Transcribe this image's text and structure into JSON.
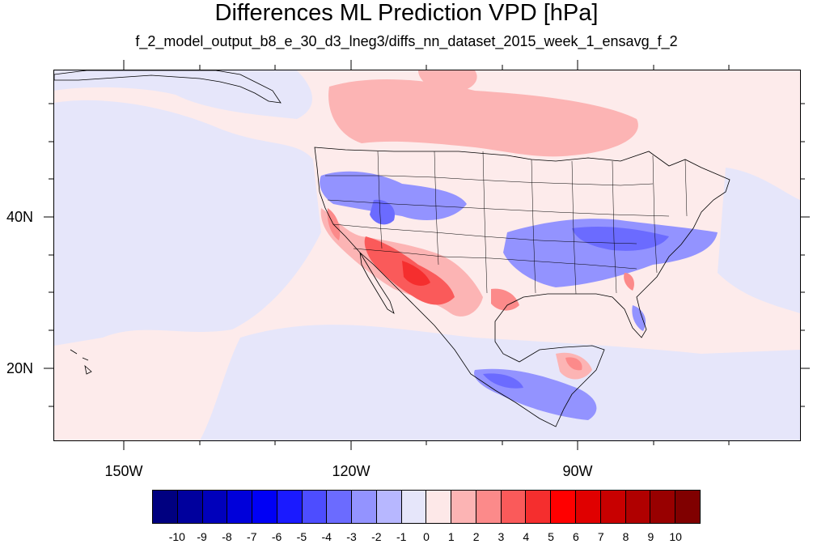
{
  "title": "Differences ML Prediction VPD [hPa]",
  "subtitle": "f_2_model_output_b8_e_30_d3_lneg3/diffs_nn_dataset_2015_week_1_ensavg_f_2",
  "map": {
    "lat_labels": [
      "40N",
      "20N"
    ],
    "lon_labels": [
      "150W",
      "120W",
      "90W"
    ]
  },
  "colorbar": {
    "labels": [
      "-10",
      "-9",
      "-8",
      "-7",
      "-6",
      "-5",
      "-4",
      "-3",
      "-2",
      "-1",
      "0",
      "1",
      "2",
      "3",
      "4",
      "5",
      "6",
      "7",
      "8",
      "9",
      "10"
    ],
    "colors": [
      "#000080",
      "#00009d",
      "#0000bb",
      "#0000da",
      "#0000f5",
      "#1a1aff",
      "#4d4dff",
      "#6b6bff",
      "#9393ff",
      "#b7b7ff",
      "#e6e6fa",
      "#fde8e8",
      "#fcb4b4",
      "#fc8a8a",
      "#fa5a5a",
      "#f52e2e",
      "#ff0000",
      "#e00000",
      "#c80000",
      "#b00000",
      "#980000",
      "#800000"
    ],
    "background": "#fdebeb"
  }
}
